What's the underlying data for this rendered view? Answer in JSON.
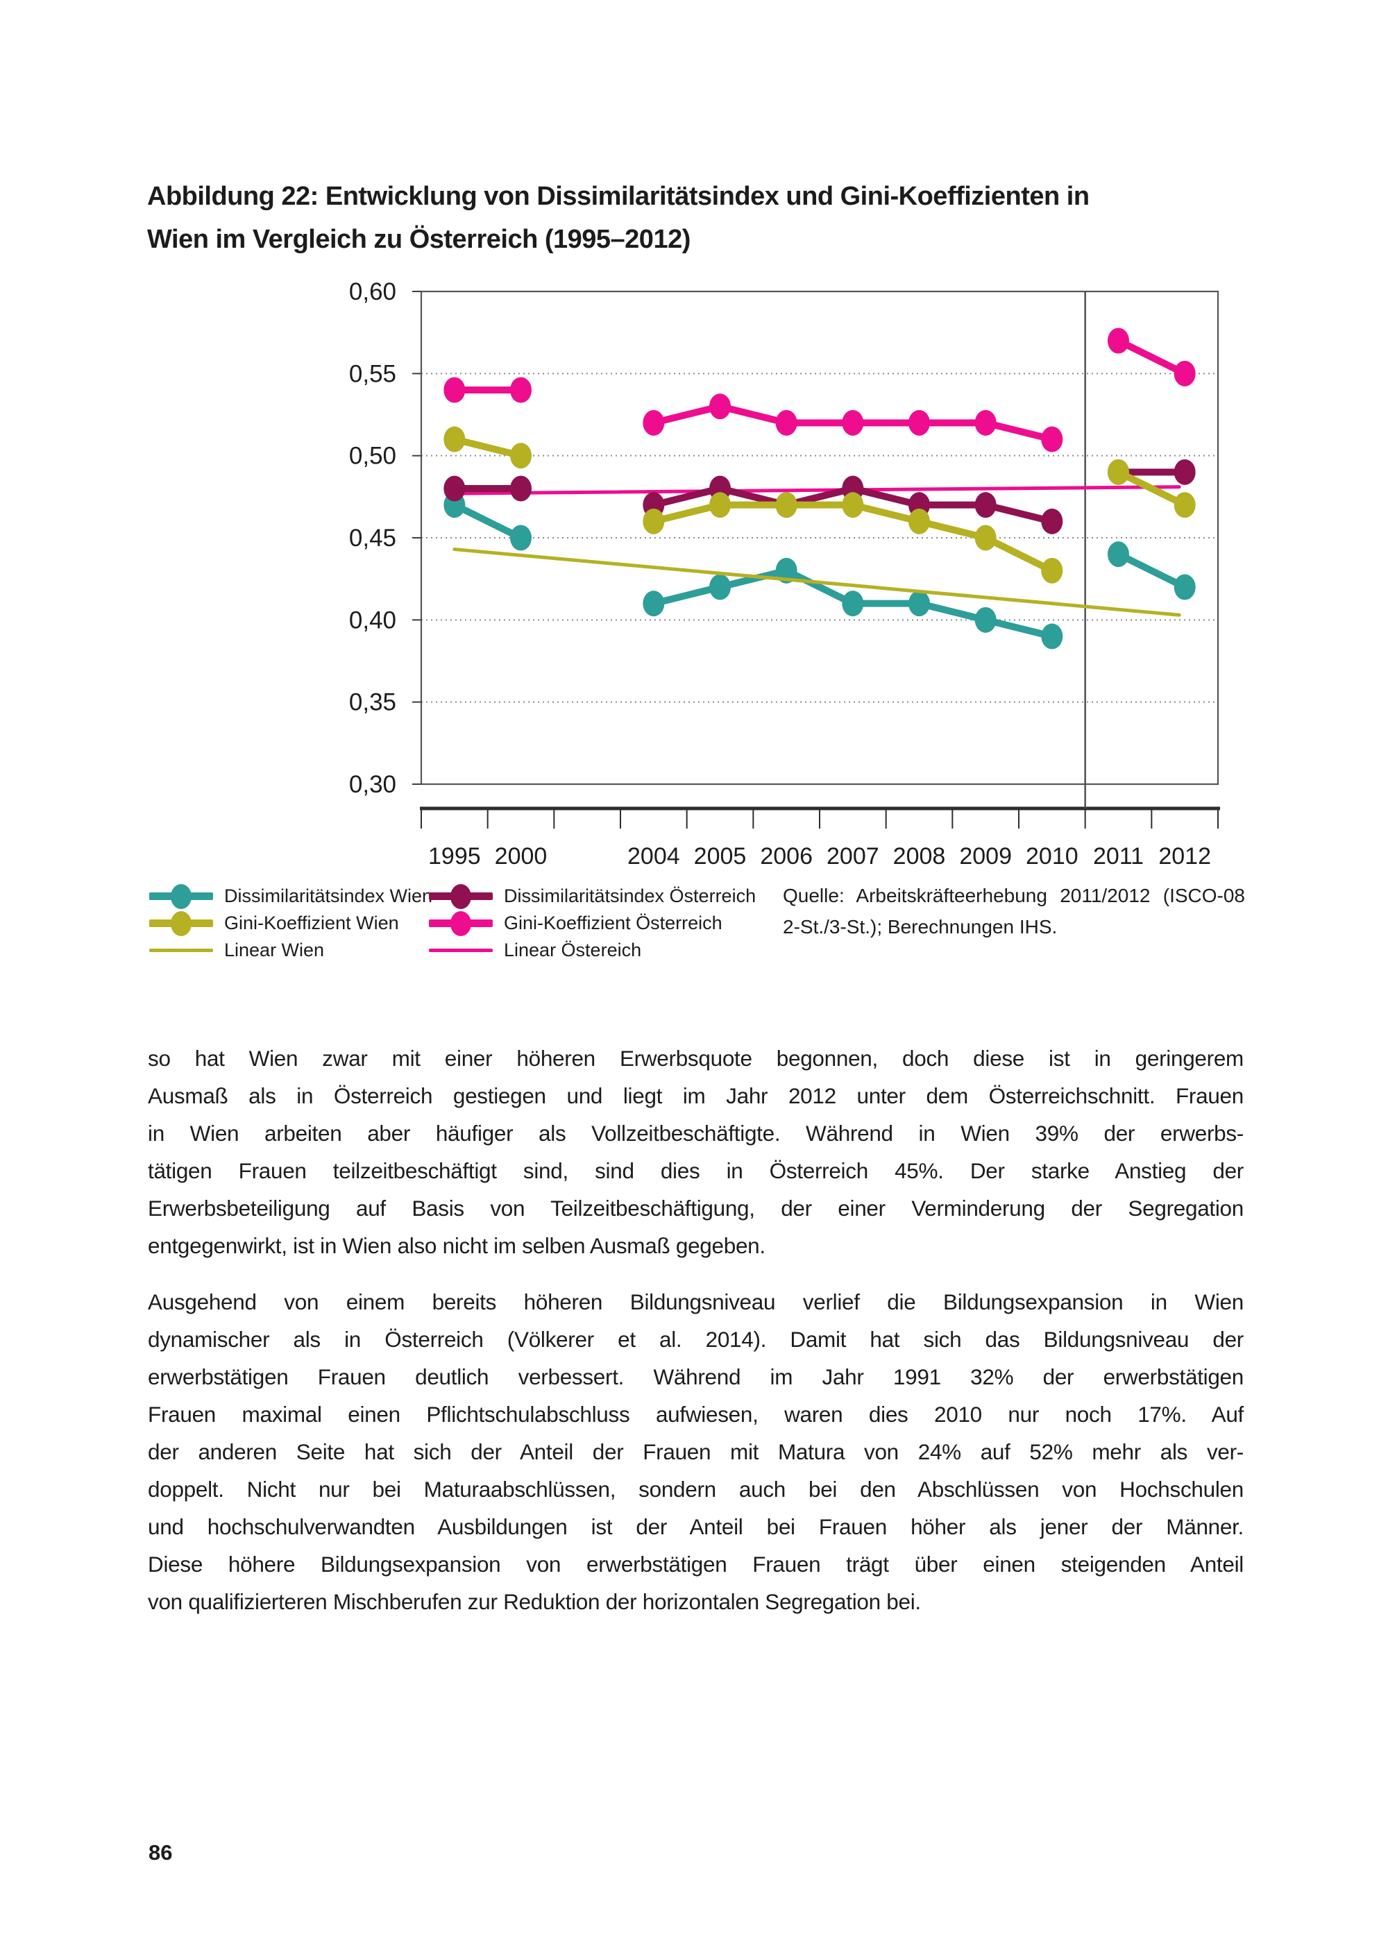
{
  "page": {
    "number": "86"
  },
  "figure": {
    "title_line1": "Abbildung 22: Entwicklung von Dissimilaritätsindex und Gini-Koeffizienten in",
    "title_line2": "Wien im Vergleich zu Österreich (1995–2012)",
    "source_line1": "Quelle: Arbeitskräfteerhebung 2011/2012 (ISCO-08",
    "source_line2": "2-St./3-St.); Berechnungen IHS."
  },
  "legend": {
    "col1": [
      {
        "label": "Dissimilaritätsindex Wien",
        "color": "#2d9e98",
        "type": "dot"
      },
      {
        "label": "Gini-Koeffizient Wien",
        "color": "#b5b122",
        "type": "dot"
      },
      {
        "label": "Linear Wien",
        "color": "#b5b122",
        "type": "line"
      }
    ],
    "col2": [
      {
        "label": "Dissimilaritätsindex Österreich",
        "color": "#8f1150",
        "type": "dot"
      },
      {
        "label": "Gini-Koeffizient Österreich",
        "color": "#ee0d8e",
        "type": "dot"
      },
      {
        "label": "Linear Östereich",
        "color": "#ee0d8e",
        "type": "line"
      }
    ]
  },
  "chart_data": {
    "type": "line",
    "title": "",
    "xlabel": "",
    "ylabel": "",
    "ylim": [
      0.3,
      0.6
    ],
    "ytick_labels": [
      "0,60",
      "0,55",
      "0,50",
      "0,45",
      "0,40",
      "0,35",
      "0,30"
    ],
    "ytick_values": [
      0.6,
      0.55,
      0.5,
      0.45,
      0.4,
      0.35,
      0.3
    ],
    "grid": "horizontal dotted at 0.35-0.55",
    "legend_position": "bottom",
    "total_slots": 12,
    "categories": [
      "1995",
      "2000",
      "2004",
      "2005",
      "2006",
      "2007",
      "2008",
      "2009",
      "2010",
      "2011",
      "2012"
    ],
    "slot_of_category": [
      0,
      1,
      3,
      4,
      5,
      6,
      7,
      8,
      9,
      10,
      11
    ],
    "divider_between": [
      "2010",
      "2011"
    ],
    "segments": [
      [
        0,
        1
      ],
      [
        2,
        3,
        4,
        5,
        6,
        7,
        8
      ],
      [
        9,
        10
      ]
    ],
    "series": [
      {
        "name": "Dissimilaritätsindex Wien",
        "color": "#2d9e98",
        "values": [
          0.47,
          0.45,
          0.41,
          0.42,
          0.43,
          0.41,
          0.41,
          0.4,
          0.39,
          0.44,
          0.42
        ]
      },
      {
        "name": "Gini-Koeffizient Wien",
        "color": "#b5b122",
        "values": [
          0.51,
          0.5,
          0.46,
          0.47,
          0.47,
          0.47,
          0.46,
          0.45,
          0.43,
          0.49,
          0.47
        ]
      },
      {
        "name": "Dissimilaritätsindex Österreich",
        "color": "#8f1150",
        "values": [
          0.48,
          0.48,
          0.47,
          0.48,
          0.47,
          0.48,
          0.47,
          0.47,
          0.46,
          0.49,
          0.49
        ]
      },
      {
        "name": "Gini-Koeffizient Österreich",
        "color": "#ee0d8e",
        "values": [
          0.54,
          0.54,
          0.52,
          0.53,
          0.52,
          0.52,
          0.52,
          0.52,
          0.51,
          0.57,
          0.55
        ]
      }
    ],
    "trend_lines": [
      {
        "name": "Linear Wien",
        "color": "#b5b122",
        "start_value": 0.443,
        "end_value": 0.403
      },
      {
        "name": "Linear Östereich",
        "color": "#ee0d8e",
        "start_value": 0.477,
        "end_value": 0.481
      }
    ]
  },
  "body": {
    "paragraph1_lines": [
      "so hat Wien zwar mit einer höheren Erwerbsquote begonnen, doch diese ist in geringerem",
      "Ausmaß als in Österreich gestiegen und liegt im Jahr 2012 unter dem Österreichschnitt. Frauen",
      "in Wien arbeiten aber häufiger als Vollzeitbeschäftigte. Während in Wien 39% der erwerbs-",
      "tätigen Frauen teilzeitbeschäftigt sind, sind dies in Österreich 45%. Der starke Anstieg der",
      "Erwerbsbeteiligung auf Basis von Teilzeitbeschäftigung, der einer Verminderung der Segregation",
      "entgegenwirkt, ist in Wien also nicht im selben Ausmaß gegeben."
    ],
    "paragraph2_lines": [
      "Ausgehend von einem bereits höheren Bildungsniveau verlief die Bildungsexpansion in Wien",
      "dynamischer als in Österreich (Völkerer et al. 2014). Damit hat sich das Bildungsniveau der",
      "erwerbstätigen Frauen deutlich verbessert. Während im Jahr 1991 32% der erwerbstätigen",
      "Frauen maximal einen Pflichtschulabschluss aufwiesen, waren dies 2010 nur noch 17%. Auf",
      "der anderen Seite hat sich der Anteil der Frauen mit Matura von 24% auf 52% mehr als ver-",
      "doppelt. Nicht nur bei Maturaabschlüssen, sondern auch bei den Abschlüssen von Hochschulen",
      "und hochschulverwandten Ausbildungen ist der Anteil bei Frauen höher als jener der Männer.",
      "Diese höhere Bildungsexpansion von erwerbstätigen Frauen trägt über einen steigenden Anteil",
      "von qualifizierteren Mischberufen zur Reduktion der horizontalen Segregation bei."
    ]
  },
  "colors": {
    "text": "#1c1c1c",
    "axis": "#3f3f3f",
    "grid": "#8a8a8a",
    "frame": "#555555",
    "teal": "#2d9e98",
    "olive": "#b5b122",
    "maroon": "#8f1150",
    "pink": "#ee0d8e"
  }
}
